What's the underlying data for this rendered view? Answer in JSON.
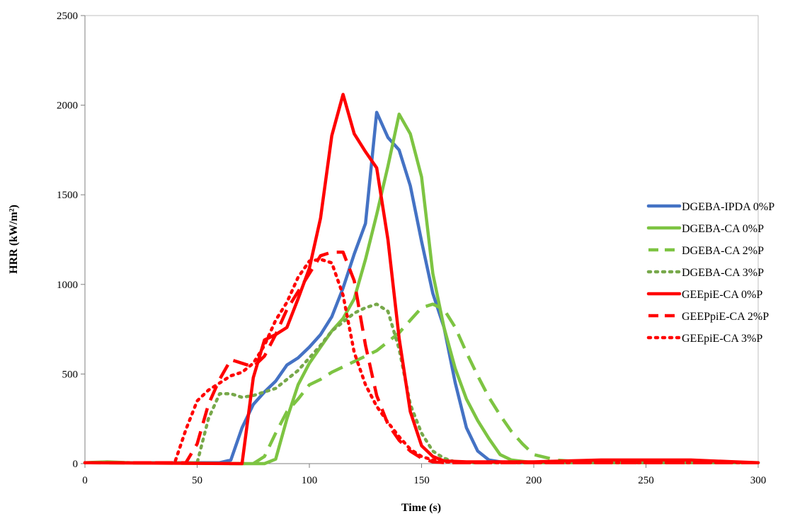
{
  "chart_data": {
    "type": "line",
    "xlabel": "Time (s)",
    "ylabel": "HRR (kW/m²)",
    "xlim": [
      0,
      300
    ],
    "ylim": [
      0,
      2500
    ],
    "xticks": [
      0,
      50,
      100,
      150,
      200,
      250,
      300
    ],
    "yticks": [
      0,
      500,
      1000,
      1500,
      2000,
      2500
    ],
    "grid": false,
    "legend_position": "right",
    "series": [
      {
        "name": "DGEBA-IPDA 0%P",
        "color": "#4472c4",
        "dash": "solid",
        "x": [
          0,
          60,
          65,
          70,
          75,
          80,
          85,
          90,
          95,
          100,
          105,
          110,
          115,
          120,
          125,
          130,
          135,
          140,
          145,
          150,
          155,
          160,
          165,
          170,
          175,
          180,
          185,
          190,
          200,
          300
        ],
        "y": [
          5,
          5,
          20,
          200,
          330,
          400,
          460,
          550,
          590,
          650,
          720,
          820,
          980,
          1170,
          1340,
          1960,
          1820,
          1750,
          1550,
          1240,
          950,
          760,
          450,
          200,
          70,
          20,
          10,
          5,
          5,
          5
        ]
      },
      {
        "name": "DGEBA-CA 0%P",
        "color": "#7dc442",
        "dash": "solid",
        "x": [
          0,
          10,
          20,
          70,
          80,
          85,
          90,
          95,
          100,
          105,
          110,
          115,
          120,
          125,
          130,
          135,
          140,
          145,
          150,
          155,
          160,
          165,
          170,
          175,
          180,
          185,
          190,
          200,
          300
        ],
        "y": [
          5,
          10,
          5,
          0,
          0,
          25,
          250,
          440,
          560,
          650,
          740,
          810,
          920,
          1140,
          1390,
          1660,
          1950,
          1840,
          1600,
          1060,
          760,
          530,
          360,
          240,
          140,
          50,
          20,
          5,
          5
        ]
      },
      {
        "name": "DGEBA-CA 2%P",
        "color": "#7dc442",
        "dash": "dashed",
        "x": [
          0,
          75,
          80,
          85,
          90,
          95,
          100,
          105,
          110,
          115,
          120,
          125,
          130,
          135,
          140,
          145,
          150,
          155,
          160,
          165,
          170,
          175,
          180,
          185,
          190,
          195,
          200,
          210,
          220,
          300
        ],
        "y": [
          5,
          0,
          40,
          170,
          290,
          360,
          440,
          470,
          510,
          540,
          570,
          600,
          630,
          680,
          730,
          800,
          870,
          890,
          860,
          760,
          620,
          490,
          370,
          270,
          180,
          110,
          50,
          20,
          10,
          5
        ]
      },
      {
        "name": "DGEBA-CA 3%P",
        "color": "#77a84a",
        "dash": "dotted",
        "x": [
          0,
          50,
          55,
          60,
          65,
          70,
          75,
          80,
          85,
          90,
          95,
          100,
          105,
          110,
          115,
          120,
          125,
          130,
          135,
          140,
          145,
          150,
          155,
          160,
          165,
          170,
          180,
          200,
          300
        ],
        "y": [
          5,
          5,
          250,
          390,
          390,
          370,
          380,
          400,
          420,
          470,
          520,
          590,
          660,
          740,
          790,
          840,
          870,
          890,
          850,
          640,
          330,
          170,
          70,
          30,
          10,
          5,
          5,
          5,
          5
        ]
      },
      {
        "name": "GEEpiE-CA 0%P",
        "color": "#ff0000",
        "dash": "solid",
        "x": [
          0,
          70,
          75,
          80,
          85,
          90,
          95,
          100,
          105,
          110,
          115,
          120,
          125,
          130,
          135,
          140,
          145,
          150,
          155,
          160,
          170,
          200,
          230,
          270,
          290,
          300
        ],
        "y": [
          5,
          0,
          480,
          690,
          720,
          760,
          920,
          1090,
          1370,
          1830,
          2060,
          1840,
          1740,
          1650,
          1250,
          700,
          290,
          100,
          40,
          15,
          10,
          10,
          20,
          20,
          10,
          5
        ]
      },
      {
        "name": "GEEPpiE-CA 2%P",
        "color": "#ff0000",
        "dash": "dashed",
        "x": [
          0,
          45,
          50,
          55,
          60,
          65,
          70,
          75,
          80,
          85,
          90,
          95,
          100,
          105,
          110,
          115,
          120,
          125,
          130,
          135,
          140,
          145,
          150,
          155,
          160,
          170,
          300
        ],
        "y": [
          5,
          5,
          110,
          330,
          470,
          580,
          560,
          540,
          600,
          720,
          860,
          960,
          1060,
          1160,
          1180,
          1180,
          1020,
          660,
          380,
          220,
          130,
          70,
          30,
          10,
          5,
          5,
          5
        ]
      },
      {
        "name": "GEEpiE-CA 3%P",
        "color": "#ff0000",
        "dash": "dotted",
        "x": [
          0,
          40,
          45,
          50,
          55,
          60,
          65,
          70,
          75,
          80,
          85,
          90,
          95,
          100,
          105,
          110,
          115,
          120,
          125,
          130,
          135,
          140,
          145,
          150,
          155,
          160,
          170,
          300
        ],
        "y": [
          5,
          5,
          190,
          350,
          410,
          450,
          490,
          510,
          560,
          660,
          800,
          900,
          1040,
          1130,
          1140,
          1120,
          940,
          620,
          440,
          320,
          230,
          150,
          80,
          40,
          20,
          10,
          5,
          5
        ]
      }
    ]
  }
}
